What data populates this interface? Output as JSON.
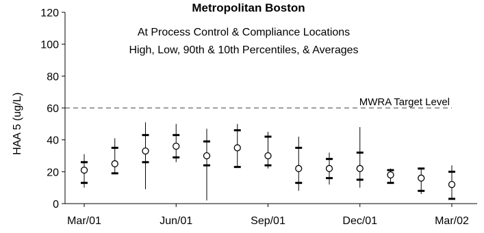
{
  "chart_data": {
    "type": "scatter",
    "title": "Metropolitan Boston",
    "subtitle_lines": [
      "At Process Control & Compliance Locations",
      "High, Low, 90th & 10th Percentiles, & Averages"
    ],
    "xlabel": "",
    "ylabel": "HAA 5 (ug/L)",
    "ylim": [
      0,
      120
    ],
    "yticks": [
      0,
      20,
      40,
      60,
      80,
      100,
      120
    ],
    "x_tick_labels": [
      "Mar/01",
      "Jun/01",
      "Sep/01",
      "Dec/01",
      "Mar/02"
    ],
    "x_tick_months": [
      0,
      3,
      6,
      9,
      12
    ],
    "grid": false,
    "reference_line": {
      "value": 60,
      "label": "MWRA Target Level",
      "style": "dashed"
    },
    "points": [
      {
        "month": 0,
        "high": 31,
        "p90": 26,
        "avg": 21,
        "p10": 13,
        "low": 10
      },
      {
        "month": 1,
        "high": 41,
        "p90": 35,
        "avg": 25,
        "p10": 19,
        "low": 19
      },
      {
        "month": 2,
        "high": 51,
        "p90": 43,
        "avg": 33,
        "p10": 26,
        "low": 9
      },
      {
        "month": 3,
        "high": 50,
        "p90": 43,
        "avg": 36,
        "p10": 29,
        "low": 26
      },
      {
        "month": 4,
        "high": 47,
        "p90": 39,
        "avg": 30,
        "p10": 24,
        "low": 2
      },
      {
        "month": 5,
        "high": 50,
        "p90": 46,
        "avg": 35,
        "p10": 23,
        "low": 23
      },
      {
        "month": 6,
        "high": 45,
        "p90": 42,
        "avg": 30,
        "p10": 24,
        "low": 22
      },
      {
        "month": 7,
        "high": 42,
        "p90": 35,
        "avg": 22,
        "p10": 13,
        "low": 8
      },
      {
        "month": 8,
        "high": 32,
        "p90": 28,
        "avg": 22,
        "p10": 16,
        "low": 12
      },
      {
        "month": 9,
        "high": 48,
        "p90": 32,
        "avg": 22,
        "p10": 15,
        "low": 10
      },
      {
        "month": 10,
        "high": 22,
        "p90": 21,
        "avg": 18,
        "p10": 13,
        "low": 13
      },
      {
        "month": 11,
        "high": 22,
        "p90": 22,
        "avg": 16,
        "p10": 8,
        "low": 6
      },
      {
        "month": 12,
        "high": 24,
        "p90": 20,
        "avg": 12,
        "p10": 3,
        "low": 3
      }
    ]
  }
}
